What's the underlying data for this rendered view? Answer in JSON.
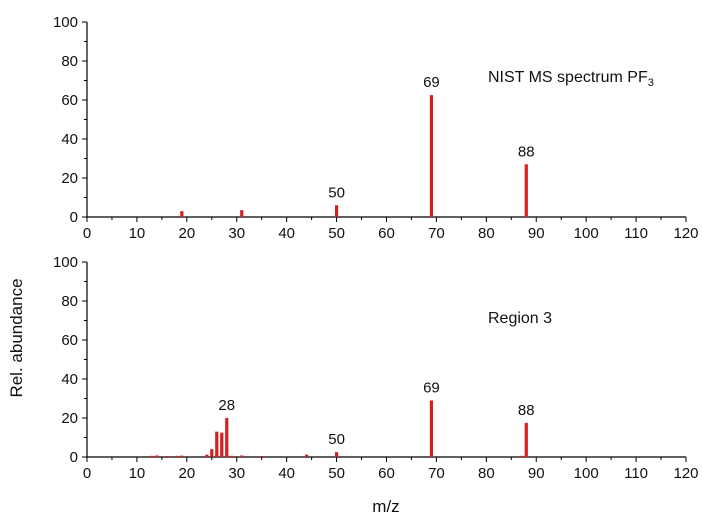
{
  "chart_data": {
    "type": "bar",
    "ylabel": "Rel. abundance",
    "xlabel": "m/z",
    "bar_color": "#d42020",
    "panels": [
      {
        "annotation": "NIST MS spectrum PF",
        "annotation_sub": "3",
        "xlim": [
          0,
          120
        ],
        "ylim": [
          0,
          100
        ],
        "x_ticks": [
          0,
          10,
          20,
          30,
          40,
          50,
          60,
          70,
          80,
          90,
          100,
          110,
          120
        ],
        "y_ticks": [
          0,
          20,
          40,
          60,
          80,
          100
        ],
        "peaks": [
          {
            "x": 19,
            "y": 3
          },
          {
            "x": 31,
            "y": 3.5
          },
          {
            "x": 50,
            "y": 6,
            "label": "50"
          },
          {
            "x": 69,
            "y": 62.5,
            "label": "69"
          },
          {
            "x": 88,
            "y": 27,
            "label": "88"
          }
        ]
      },
      {
        "annotation": "Region 3",
        "annotation_sub": "",
        "xlim": [
          0,
          120
        ],
        "ylim": [
          0,
          100
        ],
        "x_ticks": [
          0,
          10,
          20,
          30,
          40,
          50,
          60,
          70,
          80,
          90,
          100,
          110,
          120
        ],
        "y_ticks": [
          0,
          20,
          40,
          60,
          80,
          100
        ],
        "peaks": [
          {
            "x": 13,
            "y": 0.6
          },
          {
            "x": 14,
            "y": 0.8
          },
          {
            "x": 16,
            "y": 0.5
          },
          {
            "x": 18,
            "y": 0.6
          },
          {
            "x": 19,
            "y": 0.7
          },
          {
            "x": 24,
            "y": 1.2
          },
          {
            "x": 25,
            "y": 4
          },
          {
            "x": 26,
            "y": 13
          },
          {
            "x": 27,
            "y": 12.5
          },
          {
            "x": 28,
            "y": 20,
            "label": "28"
          },
          {
            "x": 29,
            "y": 0.6
          },
          {
            "x": 31,
            "y": 0.8
          },
          {
            "x": 35,
            "y": 0.5
          },
          {
            "x": 44,
            "y": 1.2
          },
          {
            "x": 50,
            "y": 2.5,
            "label": "50"
          },
          {
            "x": 69,
            "y": 29,
            "label": "69"
          },
          {
            "x": 87,
            "y": 0.6
          },
          {
            "x": 88,
            "y": 17.5,
            "label": "88"
          }
        ]
      }
    ]
  }
}
